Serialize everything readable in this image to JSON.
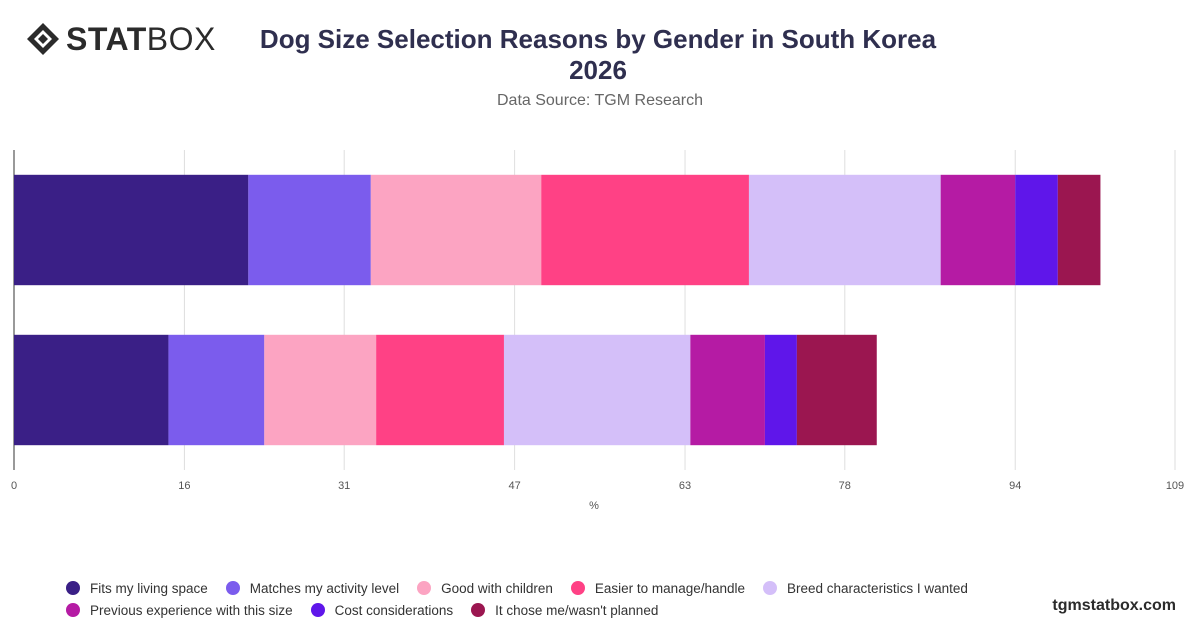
{
  "header": {
    "logo_text_bold": "STAT",
    "logo_text_light": "BOX",
    "title_line1": "Dog Size Selection Reasons by Gender in South Korea",
    "title_line2": "2026",
    "subtitle": "Data Source: TGM Research"
  },
  "watermark": "tgmstatbox.com",
  "chart_data": {
    "type": "bar",
    "orientation": "horizontal",
    "stacked": true,
    "title": "Dog Size Selection Reasons by Gender in South Korea 2026",
    "xlabel": "%",
    "ylabel": "",
    "xlim": [
      0,
      109
    ],
    "xticks": [
      0,
      16,
      31,
      47,
      63,
      78,
      94,
      109
    ],
    "grid": true,
    "legend_position": "bottom",
    "categories": [
      "",
      ""
    ],
    "series": [
      {
        "name": "Fits my living space",
        "color": "#3a1f86",
        "values": [
          22,
          14.5
        ]
      },
      {
        "name": "Matches my activity level",
        "color": "#7b5ced",
        "values": [
          11.5,
          9
        ]
      },
      {
        "name": "Good with children",
        "color": "#fca4c2",
        "values": [
          16,
          10.5
        ]
      },
      {
        "name": "Easier to manage/handle",
        "color": "#ff4185",
        "values": [
          19.5,
          12
        ]
      },
      {
        "name": "Breed characteristics I wanted",
        "color": "#d4bff9",
        "values": [
          18,
          17.5
        ]
      },
      {
        "name": "Previous experience with this size",
        "color": "#b51ba4",
        "values": [
          7,
          7
        ]
      },
      {
        "name": "Cost considerations",
        "color": "#5f16ea",
        "values": [
          4,
          3
        ]
      },
      {
        "name": "It chose me/wasn't planned",
        "color": "#9b1650",
        "values": [
          4,
          7.5
        ]
      }
    ]
  }
}
